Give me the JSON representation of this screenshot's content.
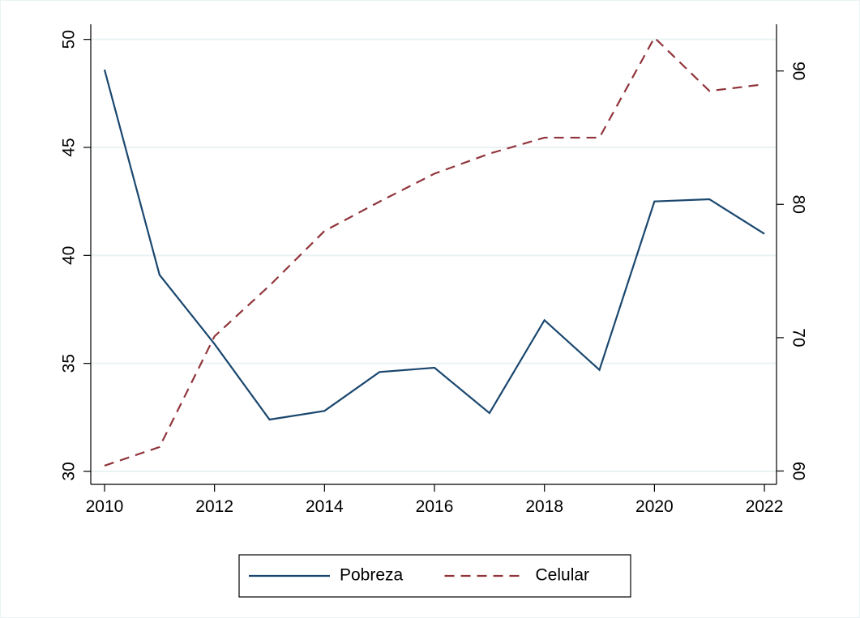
{
  "chart_data": {
    "type": "line",
    "x": [
      2010,
      2011,
      2012,
      2013,
      2014,
      2015,
      2016,
      2017,
      2018,
      2019,
      2020,
      2021,
      2022
    ],
    "series": [
      {
        "name": "Pobreza",
        "color": "#1a476f",
        "dash": false,
        "values": [
          48.6,
          39.1,
          35.9,
          32.4,
          32.8,
          34.6,
          34.8,
          32.7,
          37.0,
          34.7,
          42.5,
          42.6,
          41.0
        ]
      },
      {
        "name": "Celular",
        "color": "#90353b",
        "dash": true,
        "axis": "y2",
        "values": [
          60.4,
          61.8,
          70.1,
          73.9,
          78.0,
          80.2,
          82.3,
          83.8,
          85.0,
          85.0,
          92.5,
          88.5,
          89.0
        ]
      }
    ],
    "xlim": [
      2009.75,
      2022.22
    ],
    "xticks": [
      2010,
      2012,
      2014,
      2016,
      2018,
      2020,
      2022
    ],
    "ylim": [
      29.4,
      50.7
    ],
    "yticks": [
      30,
      35,
      40,
      45,
      50
    ],
    "y2lim": [
      59.0,
      93.5
    ],
    "y2ticks": [
      60,
      70,
      80,
      90
    ],
    "grid": true,
    "legend": "bottom"
  }
}
